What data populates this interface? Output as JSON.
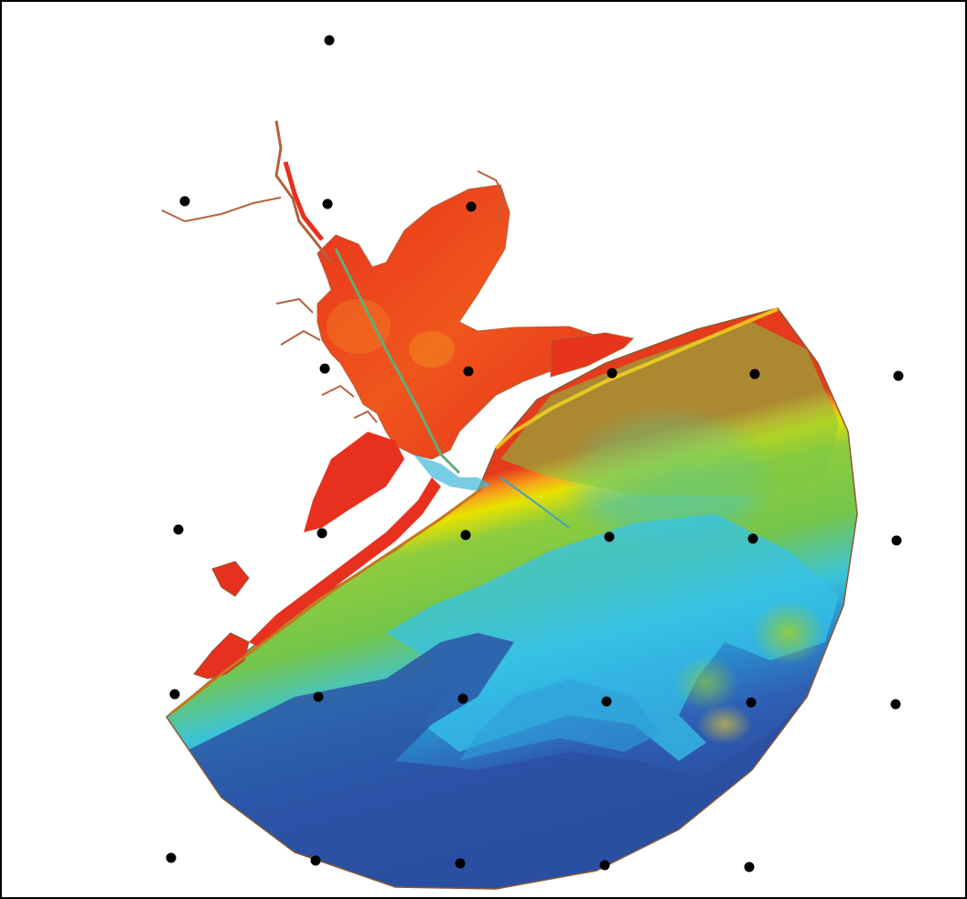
{
  "map": {
    "kind": "bathymetry-elevation-raster",
    "frame_border_color": "#000000",
    "background_color": "#ffffff",
    "color_ramp": [
      "#e8301e",
      "#f2541a",
      "#f7a21c",
      "#f0e000",
      "#a5cf3a",
      "#7ec843",
      "#5cc8b0",
      "#35c2e8",
      "#2a8fce",
      "#2f60b5",
      "#2a4fa3"
    ],
    "outline_color": "#8a5a35",
    "channel_color": "#5fae7a",
    "point_color": "#000000",
    "point_grid_rows": 5,
    "point_grid_cols": 6,
    "point_count": 27
  }
}
